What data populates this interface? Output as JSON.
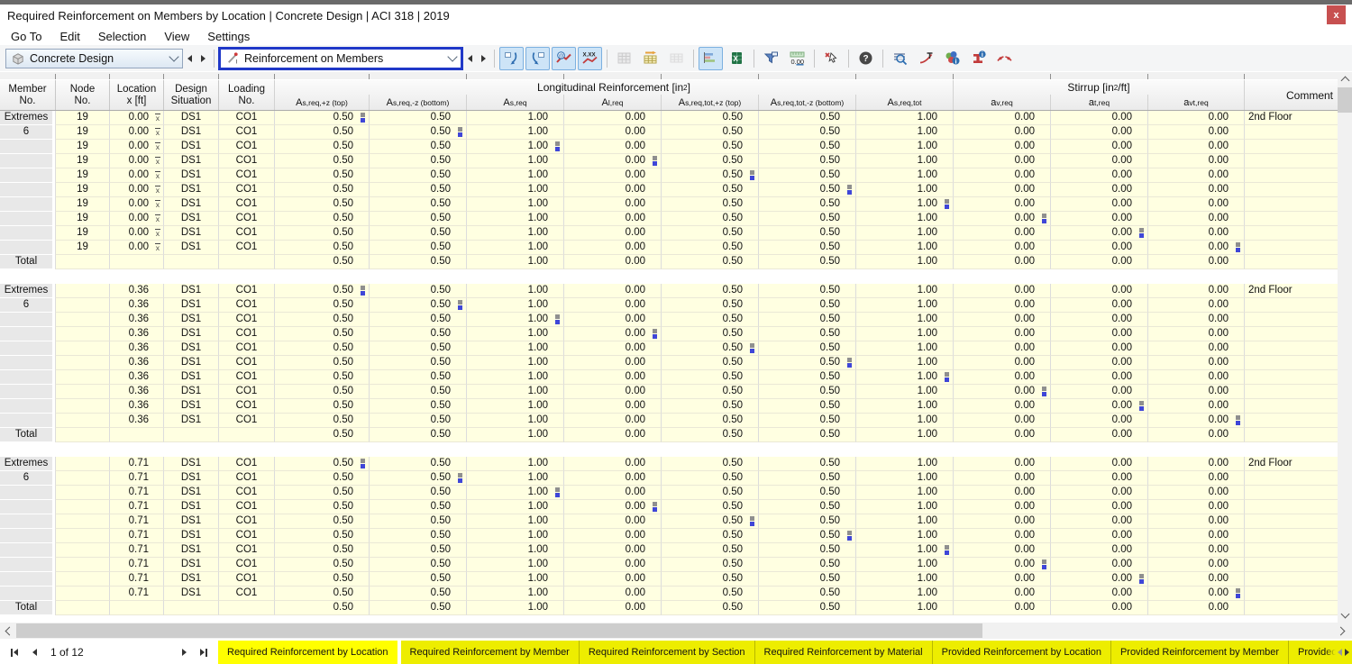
{
  "window": {
    "title": "Required Reinforcement on Members by Location | Concrete Design | ACI 318 | 2019",
    "close_label": "x"
  },
  "menu": {
    "items": [
      "Go To",
      "Edit",
      "Selection",
      "View",
      "Settings"
    ]
  },
  "toolbar": {
    "module_combo": {
      "value": "Concrete Design",
      "icon": "concrete-cube-icon"
    },
    "table_combo": {
      "value": "Reinforcement on Members",
      "icon": "reinforcement-member-icon"
    },
    "buttons": [
      {
        "name": "jump-in-graphic-icon",
        "state": "checked"
      },
      {
        "name": "jump-back-icon",
        "state": "checked"
      },
      {
        "name": "result-diagrams-icon",
        "state": "checked"
      },
      {
        "name": "show-values-icon",
        "state": "checked"
      },
      {
        "sep": true
      },
      {
        "name": "table-grid-icon",
        "state": "disabled"
      },
      {
        "name": "table-goto-icon",
        "state": "normal"
      },
      {
        "name": "table-new-icon",
        "state": "disabled"
      },
      {
        "sep": true
      },
      {
        "name": "column-chart-icon",
        "state": "checked"
      },
      {
        "name": "excel-export-icon",
        "state": "normal"
      },
      {
        "sep": true
      },
      {
        "name": "filter-icon",
        "state": "normal"
      },
      {
        "name": "decimal-places-icon",
        "state": "normal"
      },
      {
        "sep": true
      },
      {
        "name": "clear-selection-icon",
        "state": "normal"
      },
      {
        "sep": true
      },
      {
        "name": "help-icon",
        "state": "normal"
      },
      {
        "sep": true
      },
      {
        "name": "search-table-icon",
        "state": "normal"
      },
      {
        "name": "design-details-icon",
        "state": "normal"
      },
      {
        "name": "color-info-icon",
        "state": "normal"
      },
      {
        "name": "member-info-icon",
        "state": "normal"
      },
      {
        "name": "result-curve-icon",
        "state": "normal"
      }
    ]
  },
  "table": {
    "fixed_columns": [
      {
        "line1": "Member",
        "line2": "No."
      },
      {
        "line1": "Node",
        "line2": "No."
      },
      {
        "line1": "Location",
        "line2": "x [ft]"
      },
      {
        "line1": "Design",
        "line2": "Situation"
      },
      {
        "line1": "Loading",
        "line2": "No."
      }
    ],
    "group_headers": [
      {
        "pre": "Longitudinal Reinforcement [in",
        "sup": "2",
        "post": "]"
      },
      {
        "pre": "Stirrup [in",
        "sup": "2",
        "post": "/ft]"
      }
    ],
    "value_columns": [
      {
        "base": "A",
        "sub": "s,req,+z (top)"
      },
      {
        "base": "A",
        "sub": "s,req,-z (bottom)"
      },
      {
        "base": "A",
        "sub": "s,req"
      },
      {
        "base": "A",
        "sub": "l,req"
      },
      {
        "base": "A",
        "sub": "s,req,tot,+z (top)"
      },
      {
        "base": "A",
        "sub": "s,req,tot,-z (bottom)"
      },
      {
        "base": "A",
        "sub": "s,req,tot"
      },
      {
        "base": "a",
        "sub": "v,req"
      },
      {
        "base": "a",
        "sub": "t,req"
      },
      {
        "base": "a",
        "sub": "vt,req"
      }
    ],
    "comment_header": "Comment",
    "total_label": "Total",
    "blocks": [
      {
        "member_label": "Extremes",
        "member_no": "6",
        "rows": [
          {
            "node": "19",
            "loc": "0.00",
            "xbar": true,
            "ds": "DS1",
            "co": "CO1",
            "mk": 0,
            "comment": "2nd Floor",
            "vals": [
              "0.50",
              "0.50",
              "1.00",
              "0.00",
              "0.50",
              "0.50",
              "1.00",
              "0.00",
              "0.00",
              "0.00"
            ]
          },
          {
            "node": "19",
            "loc": "0.00",
            "xbar": true,
            "ds": "DS1",
            "co": "CO1",
            "mk": 1,
            "comment": "",
            "vals": [
              "0.50",
              "0.50",
              "1.00",
              "0.00",
              "0.50",
              "0.50",
              "1.00",
              "0.00",
              "0.00",
              "0.00"
            ]
          },
          {
            "node": "19",
            "loc": "0.00",
            "xbar": true,
            "ds": "DS1",
            "co": "CO1",
            "mk": 2,
            "comment": "",
            "vals": [
              "0.50",
              "0.50",
              "1.00",
              "0.00",
              "0.50",
              "0.50",
              "1.00",
              "0.00",
              "0.00",
              "0.00"
            ]
          },
          {
            "node": "19",
            "loc": "0.00",
            "xbar": true,
            "ds": "DS1",
            "co": "CO1",
            "mk": 3,
            "comment": "",
            "vals": [
              "0.50",
              "0.50",
              "1.00",
              "0.00",
              "0.50",
              "0.50",
              "1.00",
              "0.00",
              "0.00",
              "0.00"
            ]
          },
          {
            "node": "19",
            "loc": "0.00",
            "xbar": true,
            "ds": "DS1",
            "co": "CO1",
            "mk": 4,
            "comment": "",
            "vals": [
              "0.50",
              "0.50",
              "1.00",
              "0.00",
              "0.50",
              "0.50",
              "1.00",
              "0.00",
              "0.00",
              "0.00"
            ]
          },
          {
            "node": "19",
            "loc": "0.00",
            "xbar": true,
            "ds": "DS1",
            "co": "CO1",
            "mk": 5,
            "comment": "",
            "vals": [
              "0.50",
              "0.50",
              "1.00",
              "0.00",
              "0.50",
              "0.50",
              "1.00",
              "0.00",
              "0.00",
              "0.00"
            ]
          },
          {
            "node": "19",
            "loc": "0.00",
            "xbar": true,
            "ds": "DS1",
            "co": "CO1",
            "mk": 6,
            "comment": "",
            "vals": [
              "0.50",
              "0.50",
              "1.00",
              "0.00",
              "0.50",
              "0.50",
              "1.00",
              "0.00",
              "0.00",
              "0.00"
            ]
          },
          {
            "node": "19",
            "loc": "0.00",
            "xbar": true,
            "ds": "DS1",
            "co": "CO1",
            "mk": 7,
            "comment": "",
            "vals": [
              "0.50",
              "0.50",
              "1.00",
              "0.00",
              "0.50",
              "0.50",
              "1.00",
              "0.00",
              "0.00",
              "0.00"
            ]
          },
          {
            "node": "19",
            "loc": "0.00",
            "xbar": true,
            "ds": "DS1",
            "co": "CO1",
            "mk": 8,
            "comment": "",
            "vals": [
              "0.50",
              "0.50",
              "1.00",
              "0.00",
              "0.50",
              "0.50",
              "1.00",
              "0.00",
              "0.00",
              "0.00"
            ]
          },
          {
            "node": "19",
            "loc": "0.00",
            "xbar": true,
            "ds": "DS1",
            "co": "CO1",
            "mk": 9,
            "comment": "",
            "vals": [
              "0.50",
              "0.50",
              "1.00",
              "0.00",
              "0.50",
              "0.50",
              "1.00",
              "0.00",
              "0.00",
              "0.00"
            ]
          }
        ],
        "total_vals": [
          "0.50",
          "0.50",
          "1.00",
          "0.00",
          "0.50",
          "0.50",
          "1.00",
          "0.00",
          "0.00",
          "0.00"
        ]
      },
      {
        "member_label": "Extremes",
        "member_no": "6",
        "rows": [
          {
            "node": "",
            "loc": "0.36",
            "xbar": false,
            "ds": "DS1",
            "co": "CO1",
            "mk": 0,
            "comment": "2nd Floor",
            "vals": [
              "0.50",
              "0.50",
              "1.00",
              "0.00",
              "0.50",
              "0.50",
              "1.00",
              "0.00",
              "0.00",
              "0.00"
            ]
          },
          {
            "node": "",
            "loc": "0.36",
            "xbar": false,
            "ds": "DS1",
            "co": "CO1",
            "mk": 1,
            "comment": "",
            "vals": [
              "0.50",
              "0.50",
              "1.00",
              "0.00",
              "0.50",
              "0.50",
              "1.00",
              "0.00",
              "0.00",
              "0.00"
            ]
          },
          {
            "node": "",
            "loc": "0.36",
            "xbar": false,
            "ds": "DS1",
            "co": "CO1",
            "mk": 2,
            "comment": "",
            "vals": [
              "0.50",
              "0.50",
              "1.00",
              "0.00",
              "0.50",
              "0.50",
              "1.00",
              "0.00",
              "0.00",
              "0.00"
            ]
          },
          {
            "node": "",
            "loc": "0.36",
            "xbar": false,
            "ds": "DS1",
            "co": "CO1",
            "mk": 3,
            "comment": "",
            "vals": [
              "0.50",
              "0.50",
              "1.00",
              "0.00",
              "0.50",
              "0.50",
              "1.00",
              "0.00",
              "0.00",
              "0.00"
            ]
          },
          {
            "node": "",
            "loc": "0.36",
            "xbar": false,
            "ds": "DS1",
            "co": "CO1",
            "mk": 4,
            "comment": "",
            "vals": [
              "0.50",
              "0.50",
              "1.00",
              "0.00",
              "0.50",
              "0.50",
              "1.00",
              "0.00",
              "0.00",
              "0.00"
            ]
          },
          {
            "node": "",
            "loc": "0.36",
            "xbar": false,
            "ds": "DS1",
            "co": "CO1",
            "mk": 5,
            "comment": "",
            "vals": [
              "0.50",
              "0.50",
              "1.00",
              "0.00",
              "0.50",
              "0.50",
              "1.00",
              "0.00",
              "0.00",
              "0.00"
            ]
          },
          {
            "node": "",
            "loc": "0.36",
            "xbar": false,
            "ds": "DS1",
            "co": "CO1",
            "mk": 6,
            "comment": "",
            "vals": [
              "0.50",
              "0.50",
              "1.00",
              "0.00",
              "0.50",
              "0.50",
              "1.00",
              "0.00",
              "0.00",
              "0.00"
            ]
          },
          {
            "node": "",
            "loc": "0.36",
            "xbar": false,
            "ds": "DS1",
            "co": "CO1",
            "mk": 7,
            "comment": "",
            "vals": [
              "0.50",
              "0.50",
              "1.00",
              "0.00",
              "0.50",
              "0.50",
              "1.00",
              "0.00",
              "0.00",
              "0.00"
            ]
          },
          {
            "node": "",
            "loc": "0.36",
            "xbar": false,
            "ds": "DS1",
            "co": "CO1",
            "mk": 8,
            "comment": "",
            "vals": [
              "0.50",
              "0.50",
              "1.00",
              "0.00",
              "0.50",
              "0.50",
              "1.00",
              "0.00",
              "0.00",
              "0.00"
            ]
          },
          {
            "node": "",
            "loc": "0.36",
            "xbar": false,
            "ds": "DS1",
            "co": "CO1",
            "mk": 9,
            "comment": "",
            "vals": [
              "0.50",
              "0.50",
              "1.00",
              "0.00",
              "0.50",
              "0.50",
              "1.00",
              "0.00",
              "0.00",
              "0.00"
            ]
          }
        ],
        "total_vals": [
          "0.50",
          "0.50",
          "1.00",
          "0.00",
          "0.50",
          "0.50",
          "1.00",
          "0.00",
          "0.00",
          "0.00"
        ]
      },
      {
        "member_label": "Extremes",
        "member_no": "6",
        "rows": [
          {
            "node": "",
            "loc": "0.71",
            "xbar": false,
            "ds": "DS1",
            "co": "CO1",
            "mk": 0,
            "comment": "2nd Floor",
            "vals": [
              "0.50",
              "0.50",
              "1.00",
              "0.00",
              "0.50",
              "0.50",
              "1.00",
              "0.00",
              "0.00",
              "0.00"
            ]
          },
          {
            "node": "",
            "loc": "0.71",
            "xbar": false,
            "ds": "DS1",
            "co": "CO1",
            "mk": 1,
            "comment": "",
            "vals": [
              "0.50",
              "0.50",
              "1.00",
              "0.00",
              "0.50",
              "0.50",
              "1.00",
              "0.00",
              "0.00",
              "0.00"
            ]
          },
          {
            "node": "",
            "loc": "0.71",
            "xbar": false,
            "ds": "DS1",
            "co": "CO1",
            "mk": 2,
            "comment": "",
            "vals": [
              "0.50",
              "0.50",
              "1.00",
              "0.00",
              "0.50",
              "0.50",
              "1.00",
              "0.00",
              "0.00",
              "0.00"
            ]
          },
          {
            "node": "",
            "loc": "0.71",
            "xbar": false,
            "ds": "DS1",
            "co": "CO1",
            "mk": 3,
            "comment": "",
            "vals": [
              "0.50",
              "0.50",
              "1.00",
              "0.00",
              "0.50",
              "0.50",
              "1.00",
              "0.00",
              "0.00",
              "0.00"
            ]
          },
          {
            "node": "",
            "loc": "0.71",
            "xbar": false,
            "ds": "DS1",
            "co": "CO1",
            "mk": 4,
            "comment": "",
            "vals": [
              "0.50",
              "0.50",
              "1.00",
              "0.00",
              "0.50",
              "0.50",
              "1.00",
              "0.00",
              "0.00",
              "0.00"
            ]
          },
          {
            "node": "",
            "loc": "0.71",
            "xbar": false,
            "ds": "DS1",
            "co": "CO1",
            "mk": 5,
            "comment": "",
            "vals": [
              "0.50",
              "0.50",
              "1.00",
              "0.00",
              "0.50",
              "0.50",
              "1.00",
              "0.00",
              "0.00",
              "0.00"
            ]
          },
          {
            "node": "",
            "loc": "0.71",
            "xbar": false,
            "ds": "DS1",
            "co": "CO1",
            "mk": 6,
            "comment": "",
            "vals": [
              "0.50",
              "0.50",
              "1.00",
              "0.00",
              "0.50",
              "0.50",
              "1.00",
              "0.00",
              "0.00",
              "0.00"
            ]
          },
          {
            "node": "",
            "loc": "0.71",
            "xbar": false,
            "ds": "DS1",
            "co": "CO1",
            "mk": 7,
            "comment": "",
            "vals": [
              "0.50",
              "0.50",
              "1.00",
              "0.00",
              "0.50",
              "0.50",
              "1.00",
              "0.00",
              "0.00",
              "0.00"
            ]
          },
          {
            "node": "",
            "loc": "0.71",
            "xbar": false,
            "ds": "DS1",
            "co": "CO1",
            "mk": 8,
            "comment": "",
            "vals": [
              "0.50",
              "0.50",
              "1.00",
              "0.00",
              "0.50",
              "0.50",
              "1.00",
              "0.00",
              "0.00",
              "0.00"
            ]
          },
          {
            "node": "",
            "loc": "0.71",
            "xbar": false,
            "ds": "DS1",
            "co": "CO1",
            "mk": 9,
            "comment": "",
            "vals": [
              "0.50",
              "0.50",
              "1.00",
              "0.00",
              "0.50",
              "0.50",
              "1.00",
              "0.00",
              "0.00",
              "0.00"
            ]
          }
        ],
        "total_vals": [
          "0.50",
          "0.50",
          "1.00",
          "0.00",
          "0.50",
          "0.50",
          "1.00",
          "0.00",
          "0.00",
          "0.00"
        ]
      }
    ]
  },
  "bottom": {
    "pager_label": "1 of 12",
    "tabs": [
      {
        "label": "Required Reinforcement by Location",
        "active": true
      },
      {
        "label": "Required Reinforcement by Member",
        "active": false
      },
      {
        "label": "Required Reinforcement by Section",
        "active": false
      },
      {
        "label": "Required Reinforcement by Material",
        "active": false
      },
      {
        "label": "Provided Reinforcement by Location",
        "active": false
      },
      {
        "label": "Provided Reinforcement by Member",
        "active": false
      },
      {
        "label": "Provided Reinforcement by Section",
        "active": false
      }
    ]
  },
  "colors": {
    "accent_blue_border": "#2038c8",
    "tab_yellow_active": "#ffff00",
    "tab_yellow": "#eded00",
    "row_cream": "#ffffe1",
    "close_red": "#c75050",
    "marker_blue": "#3f46d8",
    "marker_gray": "#8f8f8f",
    "checked_button_bg": "#cde4f7"
  }
}
